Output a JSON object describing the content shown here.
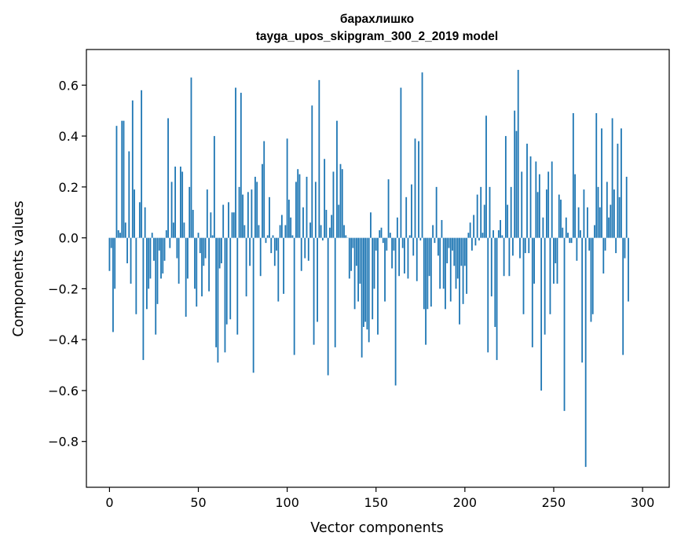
{
  "chart_data": {
    "type": "bar",
    "title": "барахлишко",
    "subtitle": "tayga_upos_skipgram_300_2_2019 model",
    "xlabel": "Vector components",
    "ylabel": "Components values",
    "xlim": [
      -13,
      315
    ],
    "ylim": [
      -0.98,
      0.74
    ],
    "xticks": [
      0,
      50,
      100,
      150,
      200,
      250,
      300
    ],
    "xtick_labels": [
      "0",
      "50",
      "100",
      "150",
      "200",
      "250",
      "300"
    ],
    "yticks": [
      -0.8,
      -0.6,
      -0.4,
      -0.2,
      0.0,
      0.2,
      0.4,
      0.6
    ],
    "ytick_labels": [
      "−0.8",
      "−0.6",
      "−0.4",
      "−0.2",
      "0.0",
      "0.2",
      "0.4",
      "0.6"
    ],
    "bar_color": "#1f77b4",
    "grid": false,
    "x_start": 0,
    "values": [
      -0.13,
      -0.04,
      -0.37,
      -0.2,
      0.44,
      0.03,
      0.02,
      0.46,
      0.46,
      0.06,
      -0.1,
      0.34,
      -0.18,
      0.54,
      0.19,
      -0.3,
      0.0,
      0.14,
      0.58,
      -0.48,
      0.12,
      -0.28,
      -0.2,
      -0.16,
      0.02,
      -0.09,
      -0.38,
      -0.26,
      -0.05,
      -0.16,
      -0.14,
      -0.09,
      0.03,
      0.47,
      -0.04,
      0.22,
      0.06,
      0.28,
      -0.08,
      -0.18,
      0.28,
      0.26,
      0.06,
      -0.31,
      -0.16,
      0.2,
      0.63,
      0.11,
      -0.2,
      -0.27,
      0.02,
      -0.06,
      -0.23,
      -0.11,
      -0.08,
      0.19,
      -0.21,
      0.1,
      0.01,
      0.4,
      -0.43,
      -0.49,
      -0.12,
      -0.1,
      0.13,
      -0.45,
      -0.34,
      0.14,
      -0.32,
      0.1,
      0.1,
      0.59,
      -0.38,
      0.2,
      0.57,
      0.17,
      0.05,
      -0.23,
      0.18,
      -0.11,
      0.19,
      -0.53,
      0.24,
      0.22,
      0.05,
      -0.15,
      0.29,
      0.38,
      -0.02,
      0.01,
      0.16,
      -0.06,
      0.01,
      -0.11,
      -0.05,
      -0.25,
      0.05,
      0.09,
      -0.22,
      0.05,
      0.39,
      0.15,
      0.08,
      0.01,
      -0.46,
      0.22,
      0.27,
      0.25,
      -0.13,
      0.12,
      -0.08,
      0.24,
      -0.09,
      0.06,
      0.52,
      -0.42,
      0.22,
      -0.33,
      0.62,
      0.05,
      -0.01,
      0.31,
      0.11,
      -0.54,
      0.04,
      0.09,
      0.26,
      -0.43,
      0.46,
      0.13,
      0.29,
      0.27,
      0.05,
      0.01,
      0.0,
      -0.16,
      -0.13,
      -0.04,
      -0.28,
      -0.11,
      -0.25,
      -0.18,
      -0.47,
      -0.35,
      -0.33,
      -0.36,
      -0.41,
      0.1,
      -0.32,
      -0.2,
      -0.05,
      -0.38,
      0.03,
      0.04,
      -0.02,
      -0.25,
      -0.05,
      0.23,
      0.02,
      -0.12,
      -0.05,
      -0.58,
      0.08,
      -0.15,
      0.59,
      -0.04,
      -0.14,
      0.16,
      -0.16,
      0.01,
      0.21,
      -0.07,
      0.39,
      -0.17,
      0.38,
      -0.01,
      0.65,
      -0.28,
      -0.42,
      -0.28,
      -0.15,
      -0.27,
      0.05,
      -0.02,
      0.2,
      -0.07,
      -0.2,
      0.07,
      -0.2,
      -0.28,
      -0.1,
      -0.04,
      -0.25,
      -0.05,
      -0.11,
      -0.2,
      -0.16,
      -0.34,
      -0.11,
      -0.26,
      -0.11,
      -0.22,
      0.02,
      0.06,
      -0.05,
      0.09,
      -0.03,
      0.17,
      -0.01,
      0.2,
      0.02,
      0.13,
      0.48,
      -0.45,
      0.2,
      -0.23,
      0.03,
      -0.35,
      -0.48,
      0.03,
      0.07,
      0.01,
      -0.15,
      0.4,
      0.13,
      -0.15,
      0.2,
      -0.07,
      0.5,
      0.42,
      0.66,
      -0.08,
      0.26,
      -0.3,
      -0.06,
      0.37,
      -0.06,
      0.32,
      -0.43,
      -0.18,
      0.3,
      0.18,
      0.25,
      -0.6,
      0.08,
      -0.38,
      0.19,
      0.26,
      -0.3,
      0.3,
      -0.18,
      -0.1,
      -0.18,
      0.17,
      0.15,
      0.04,
      -0.68,
      0.08,
      0.02,
      -0.02,
      -0.02,
      0.49,
      0.25,
      -0.09,
      0.12,
      0.03,
      -0.49,
      0.19,
      -0.9,
      0.12,
      -0.05,
      -0.33,
      -0.3,
      0.05,
      0.49,
      0.2,
      0.12,
      0.43,
      -0.14,
      -0.05,
      0.22,
      0.08,
      0.13,
      0.47,
      0.19,
      -0.06,
      0.37,
      0.16,
      0.43,
      -0.46,
      -0.08,
      0.24,
      -0.25
    ]
  }
}
